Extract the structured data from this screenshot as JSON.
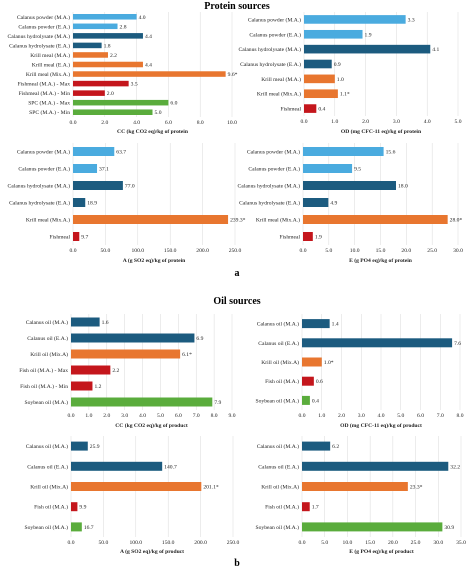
{
  "section_titles": {
    "protein": "Protein sources",
    "oil": "Oil sources"
  },
  "panel_letters": {
    "a": "a",
    "b": "b"
  },
  "colors": {
    "light_blue": "#4aabdf",
    "dark_blue": "#1c5b7f",
    "orange": "#e8762f",
    "red": "#c4161c",
    "green": "#5aac3c",
    "grid": "#d9d9d9",
    "axis": "#999999"
  },
  "chart_data": [
    {
      "id": "protein-cc",
      "type": "bar",
      "orientation": "horizontal",
      "xlabel": "CC (kg CO2 eq)/kg of protein",
      "xlim": [
        0,
        10
      ],
      "xticks": [
        "0.0",
        "2.0",
        "4.0",
        "6.0",
        "8.0",
        "10.0"
      ],
      "bars": [
        {
          "category": "Calanus powder (M.A.)",
          "value": 4.0,
          "label": "4.0",
          "color": "light_blue"
        },
        {
          "category": "Calanus powder (E.A.)",
          "value": 2.8,
          "label": "2.8",
          "color": "light_blue"
        },
        {
          "category": "Calanus hydrolysate (M.A.)",
          "value": 4.4,
          "label": "4.4",
          "color": "dark_blue"
        },
        {
          "category": "Calanus hydrolysate (E.A.)",
          "value": 1.8,
          "label": "1.8",
          "color": "dark_blue"
        },
        {
          "category": "Krill meal (M.A.)",
          "value": 2.2,
          "label": "2.2",
          "color": "orange"
        },
        {
          "category": "Krill meal (E.A.)",
          "value": 4.4,
          "label": "4.4",
          "color": "orange"
        },
        {
          "category": "Krill meal (Mix.A.)",
          "value": 9.6,
          "label": "9.6*",
          "color": "orange"
        },
        {
          "category": "Fishmeal (M.A.) - Max",
          "value": 3.5,
          "label": "3.5",
          "color": "red"
        },
        {
          "category": "Fishmeal (M.A.) - Min",
          "value": 2.0,
          "label": "2.0",
          "color": "red"
        },
        {
          "category": "SPC (M.A.) - Max",
          "value": 6.0,
          "label": "6.0",
          "color": "green"
        },
        {
          "category": "SPC (M.A.) - Min",
          "value": 5.0,
          "label": "5.0",
          "color": "green"
        }
      ]
    },
    {
      "id": "protein-od",
      "type": "bar",
      "orientation": "horizontal",
      "xlabel": "OD (mg CFC-11 eq)/kg of protein",
      "xlim": [
        0,
        5
      ],
      "xticks": [
        "0.0",
        "1.0",
        "2.0",
        "3.0",
        "4.0",
        "5.0"
      ],
      "bars": [
        {
          "category": "Calanus powder (M.A.)",
          "value": 3.3,
          "label": "3.3",
          "color": "light_blue"
        },
        {
          "category": "Calanus powder (E.A.)",
          "value": 1.9,
          "label": "1.9",
          "color": "light_blue"
        },
        {
          "category": "Calanus hydrolysate (M.A.)",
          "value": 4.1,
          "label": "4.1",
          "color": "dark_blue"
        },
        {
          "category": "Calanus hydrolysate (E.A.)",
          "value": 0.9,
          "label": "0.9",
          "color": "dark_blue"
        },
        {
          "category": "Krill meal (M.A.)",
          "value": 1.0,
          "label": "1.0",
          "color": "orange"
        },
        {
          "category": "Krill meal (Mix.A.)",
          "value": 1.1,
          "label": "1.1*",
          "color": "orange"
        },
        {
          "category": "Fishmeal",
          "value": 0.4,
          "label": "0.4",
          "color": "red"
        }
      ]
    },
    {
      "id": "protein-a",
      "type": "bar",
      "orientation": "horizontal",
      "xlabel": "A (g SO2 eq)/kg of protein",
      "xlim": [
        0,
        250
      ],
      "xticks": [
        "0.0",
        "50.0",
        "100.0",
        "150.0",
        "200.0",
        "250.0"
      ],
      "bars": [
        {
          "category": "Calanus powder (M.A.)",
          "value": 63.7,
          "label": "63.7",
          "color": "light_blue"
        },
        {
          "category": "Calanus powder (E.A.)",
          "value": 37.1,
          "label": "37.1",
          "color": "light_blue"
        },
        {
          "category": "Calanus hydrolysate (M.A.)",
          "value": 77.0,
          "label": "77.0",
          "color": "dark_blue"
        },
        {
          "category": "Calanus hydrolysate (E.A.)",
          "value": 18.9,
          "label": "18.9",
          "color": "dark_blue"
        },
        {
          "category": "Krill meal (Mix.A.)",
          "value": 239.3,
          "label": "239.3*",
          "color": "orange"
        },
        {
          "category": "Fishmeal",
          "value": 9.7,
          "label": "9.7",
          "color": "red"
        }
      ]
    },
    {
      "id": "protein-e",
      "type": "bar",
      "orientation": "horizontal",
      "xlabel": "E (g PO4 eq)/kg of protein",
      "xlim": [
        0,
        30
      ],
      "xticks": [
        "0.0",
        "5.0",
        "10.0",
        "15.0",
        "20.0",
        "25.0",
        "30.0"
      ],
      "bars": [
        {
          "category": "Calanus powder (M.A.)",
          "value": 15.6,
          "label": "15.6",
          "color": "light_blue"
        },
        {
          "category": "Calanus powder (E.A.)",
          "value": 9.5,
          "label": "9.5",
          "color": "light_blue"
        },
        {
          "category": "Calanus hydrolysate (M.A.)",
          "value": 18.0,
          "label": "18.0",
          "color": "dark_blue"
        },
        {
          "category": "Calanus hydrolysate (E.A.)",
          "value": 4.9,
          "label": "4.9",
          "color": "dark_blue"
        },
        {
          "category": "Krill meal (Mix.A.)",
          "value": 28.0,
          "label": "28.0*",
          "color": "orange"
        },
        {
          "category": "Fishmeal",
          "value": 1.9,
          "label": "1.9",
          "color": "red"
        }
      ]
    },
    {
      "id": "oil-cc",
      "type": "bar",
      "orientation": "horizontal",
      "xlabel": "CC (kg CO2 eq)/kg of product",
      "xlim": [
        0,
        9
      ],
      "xticks": [
        "0.0",
        "1.0",
        "2.0",
        "3.0",
        "4.0",
        "5.0",
        "6.0",
        "7.0",
        "8.0",
        "9.0"
      ],
      "bars": [
        {
          "category": "Calanus oil (M.A.)",
          "value": 1.6,
          "label": "1.6",
          "color": "dark_blue"
        },
        {
          "category": "Calanus oil (E.A.)",
          "value": 6.9,
          "label": "6.9",
          "color": "dark_blue"
        },
        {
          "category": "Krill oil (Mix.A)",
          "value": 6.1,
          "label": "6.1*",
          "color": "orange"
        },
        {
          "category": "Fish oil (M.A.) - Max",
          "value": 2.2,
          "label": "2.2",
          "color": "red"
        },
        {
          "category": "Fish oil (M.A.) - Min",
          "value": 1.2,
          "label": "1.2",
          "color": "red"
        },
        {
          "category": "Soybean oil (M.A.)",
          "value": 7.9,
          "label": "7.9",
          "color": "green"
        }
      ]
    },
    {
      "id": "oil-od",
      "type": "bar",
      "orientation": "horizontal",
      "xlabel": "OD (mg CFC-11 eq)/kg of product",
      "xlim": [
        0,
        8
      ],
      "xticks": [
        "0.0",
        "1.0",
        "2.0",
        "3.0",
        "4.0",
        "5.0",
        "6.0",
        "7.0",
        "8.0"
      ],
      "bars": [
        {
          "category": "Calanus oil (M.A.)",
          "value": 1.4,
          "label": "1.4",
          "color": "dark_blue"
        },
        {
          "category": "Calanus oil (E.A.)",
          "value": 7.6,
          "label": "7.6",
          "color": "dark_blue"
        },
        {
          "category": "Krill oil (Mix.A)",
          "value": 1.0,
          "label": "1.0*",
          "color": "orange"
        },
        {
          "category": "Fish oil (M.A.)",
          "value": 0.6,
          "label": "0.6",
          "color": "red"
        },
        {
          "category": "Soybean oil (M.A.)",
          "value": 0.4,
          "label": "0.4",
          "color": "green"
        }
      ]
    },
    {
      "id": "oil-a",
      "type": "bar",
      "orientation": "horizontal",
      "xlabel": "A (g SO2 eq)/kg of product",
      "xlim": [
        0,
        250
      ],
      "xticks": [
        "0.0",
        "50.0",
        "100.0",
        "150.0",
        "200.0",
        "250.0"
      ],
      "bars": [
        {
          "category": "Calanus oil (M.A.)",
          "value": 25.9,
          "label": "25.9",
          "color": "dark_blue"
        },
        {
          "category": "Calanus oil (E.A.)",
          "value": 140.7,
          "label": "140.7",
          "color": "dark_blue"
        },
        {
          "category": "Krill oil (Mix.A)",
          "value": 201.1,
          "label": "201.1*",
          "color": "orange"
        },
        {
          "category": "Fish oil (M.A.)",
          "value": 9.9,
          "label": "9.9",
          "color": "red"
        },
        {
          "category": "Soybean oil (M.A.)",
          "value": 16.7,
          "label": "16.7",
          "color": "green"
        }
      ]
    },
    {
      "id": "oil-e",
      "type": "bar",
      "orientation": "horizontal",
      "xlabel": "E (g PO4 eq)/kg of product",
      "xlim": [
        0,
        35
      ],
      "xticks": [
        "0.0",
        "5.0",
        "10.0",
        "15.0",
        "20.0",
        "25.0",
        "30.0",
        "35.0"
      ],
      "bars": [
        {
          "category": "Calanus oil (M.A.)",
          "value": 6.2,
          "label": "6.2",
          "color": "dark_blue"
        },
        {
          "category": "Calanus oil (E.A.)",
          "value": 32.2,
          "label": "32.2",
          "color": "dark_blue"
        },
        {
          "category": "Krill oil (Mix.A)",
          "value": 23.3,
          "label": "23.3*",
          "color": "orange"
        },
        {
          "category": "Fish oil (M.A.)",
          "value": 1.7,
          "label": "1.7",
          "color": "red"
        },
        {
          "category": "Soybean oil (M.A.)",
          "value": 30.9,
          "label": "30.9",
          "color": "green"
        }
      ]
    }
  ]
}
